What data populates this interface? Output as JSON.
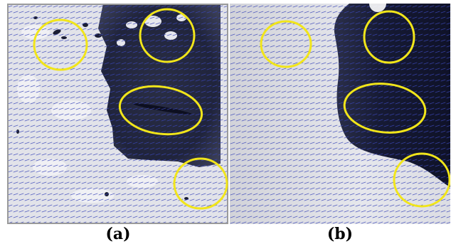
{
  "figure": {
    "panels": [
      {
        "caption": "(a)"
      },
      {
        "caption": "(b)"
      }
    ],
    "colors": {
      "light_region": "#e3e4ea",
      "dark_region": "#1a1e3a",
      "vector_field": "#3a46b8",
      "highlight_ellipse": "#f1e51a",
      "frame": "#9a9a9a"
    }
  }
}
